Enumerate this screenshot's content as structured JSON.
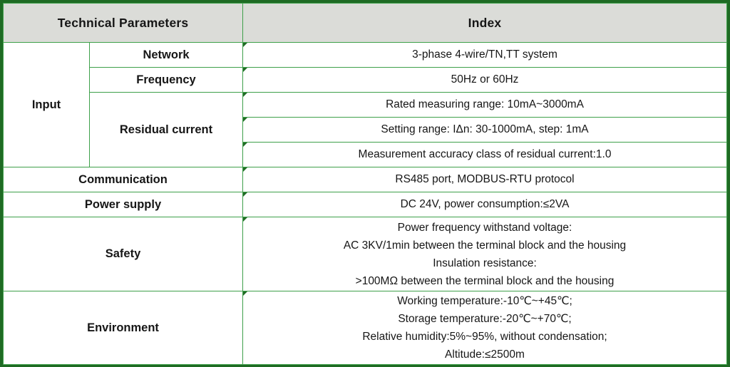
{
  "header": {
    "technical_parameters": "Technical Parameters",
    "index": "Index"
  },
  "rows": {
    "input": {
      "label": "Input",
      "network_label": "Network",
      "network_value": "3-phase 4-wire/TN,TT system",
      "frequency_label": "Frequency",
      "frequency_value": "50Hz or 60Hz",
      "residual_label": "Residual current",
      "residual_values": [
        "Rated measuring range: 10mA~3000mA",
        "Setting range: IΔn: 30-1000mA, step: 1mA",
        "Measurement accuracy class of residual current:1.0"
      ]
    },
    "communication": {
      "label": "Communication",
      "value": "RS485 port, MODBUS-RTU protocol"
    },
    "power_supply": {
      "label": "Power supply",
      "value": "DC 24V, power consumption:≤2VA"
    },
    "safety": {
      "label": "Safety",
      "lines": [
        "Power frequency withstand voltage:",
        "AC 3KV/1min between the terminal block and the housing",
        "Insulation resistance:",
        ">100MΩ between the terminal block and the housing"
      ]
    },
    "environment": {
      "label": "Environment",
      "lines": [
        "Working temperature:-10℃~+45℃;",
        "Storage temperature:-20℃~+70℃;",
        "Relative humidity:5%~95%, without condensation;",
        "Altitude:≤2500m"
      ]
    }
  },
  "colors": {
    "outer_border": "#1f6b24",
    "inner_border": "#3ea04a",
    "header_bg": "#dbdcd8",
    "text": "#161616"
  }
}
